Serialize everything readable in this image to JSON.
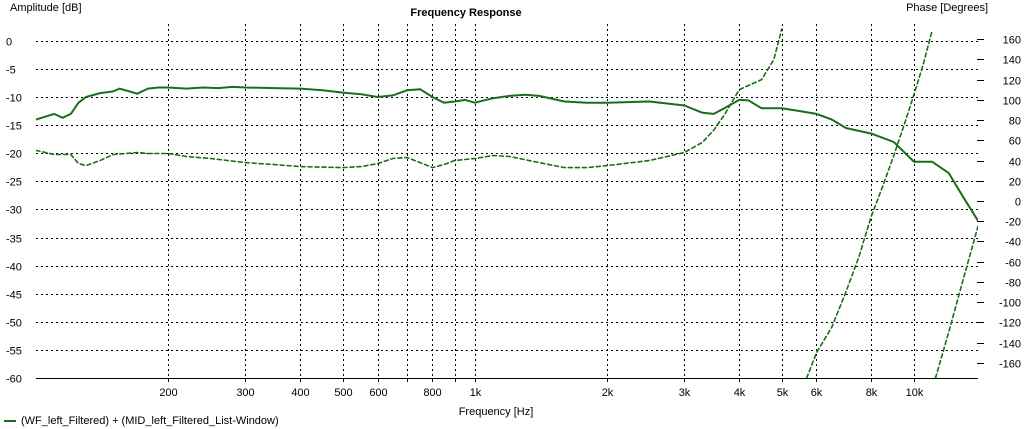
{
  "chart_data": {
    "type": "line",
    "title": "Frequency Response",
    "xlabel": "Frequency [Hz]",
    "ylabel_left": "Amplitude [dB]",
    "ylabel_right": "Phase [Degrees]",
    "x_scale": "log",
    "xlim": [
      100,
      14000
    ],
    "ylim_left": [
      -60,
      3
    ],
    "ylim_right": [
      -175,
      175
    ],
    "grid": true,
    "x_ticks": [
      {
        "value": 200,
        "label": "200"
      },
      {
        "value": 300,
        "label": "300"
      },
      {
        "value": 400,
        "label": "400"
      },
      {
        "value": 500,
        "label": "500"
      },
      {
        "value": 600,
        "label": "600"
      },
      {
        "value": 800,
        "label": "800"
      },
      {
        "value": 1000,
        "label": "1k"
      },
      {
        "value": 2000,
        "label": "2k"
      },
      {
        "value": 3000,
        "label": "3k"
      },
      {
        "value": 4000,
        "label": "4k"
      },
      {
        "value": 5000,
        "label": "5k"
      },
      {
        "value": 6000,
        "label": "6k"
      },
      {
        "value": 8000,
        "label": "8k"
      },
      {
        "value": 10000,
        "label": "10k"
      }
    ],
    "x_minor_grid": [
      700,
      900
    ],
    "y_left_ticks": [
      0,
      -5,
      -10,
      -15,
      -20,
      -25,
      -30,
      -35,
      -40,
      -45,
      -50,
      -55,
      -60
    ],
    "y_right_ticks": [
      160,
      140,
      120,
      100,
      80,
      60,
      40,
      20,
      0,
      -20,
      -40,
      -60,
      -80,
      -100,
      -120,
      -140,
      -160
    ],
    "legend_text": "(WF_left_Filtered) + (MID_left_Filtered_List-Window)",
    "series": [
      {
        "axis": "left",
        "style": "solid",
        "color": "#1a6e1a",
        "points": [
          [
            100,
            -14
          ],
          [
            105,
            -13.5
          ],
          [
            110,
            -13
          ],
          [
            115,
            -13.7
          ],
          [
            120,
            -13
          ],
          [
            125,
            -11
          ],
          [
            130,
            -10
          ],
          [
            140,
            -9.3
          ],
          [
            150,
            -9
          ],
          [
            155,
            -8.5
          ],
          [
            160,
            -8.8
          ],
          [
            170,
            -9.4
          ],
          [
            180,
            -8.5
          ],
          [
            190,
            -8.3
          ],
          [
            200,
            -8.3
          ],
          [
            220,
            -8.5
          ],
          [
            240,
            -8.3
          ],
          [
            260,
            -8.4
          ],
          [
            280,
            -8.2
          ],
          [
            300,
            -8.3
          ],
          [
            350,
            -8.4
          ],
          [
            400,
            -8.5
          ],
          [
            450,
            -8.8
          ],
          [
            500,
            -9.2
          ],
          [
            550,
            -9.5
          ],
          [
            600,
            -10
          ],
          [
            650,
            -9.7
          ],
          [
            700,
            -8.8
          ],
          [
            750,
            -8.6
          ],
          [
            800,
            -10
          ],
          [
            850,
            -11
          ],
          [
            900,
            -10.8
          ],
          [
            950,
            -10.5
          ],
          [
            1000,
            -11
          ],
          [
            1100,
            -10.2
          ],
          [
            1200,
            -9.8
          ],
          [
            1300,
            -9.6
          ],
          [
            1400,
            -9.8
          ],
          [
            1600,
            -10.8
          ],
          [
            1800,
            -11
          ],
          [
            2000,
            -11
          ],
          [
            2500,
            -10.8
          ],
          [
            3000,
            -11.5
          ],
          [
            3300,
            -12.8
          ],
          [
            3500,
            -13
          ],
          [
            3700,
            -12
          ],
          [
            4000,
            -10.5
          ],
          [
            4200,
            -10.6
          ],
          [
            4500,
            -12
          ],
          [
            5000,
            -12
          ],
          [
            5500,
            -12.5
          ],
          [
            6000,
            -13
          ],
          [
            6500,
            -14
          ],
          [
            7000,
            -15.5
          ],
          [
            8000,
            -16.5
          ],
          [
            9000,
            -18
          ],
          [
            10000,
            -21.5
          ],
          [
            11000,
            -21.5
          ],
          [
            12000,
            -23.5
          ],
          [
            13000,
            -28
          ],
          [
            14000,
            -32
          ]
        ]
      },
      {
        "axis": "right",
        "style": "dashed",
        "color": "#1a6e1a",
        "points": [
          [
            100,
            50
          ],
          [
            110,
            46
          ],
          [
            120,
            46
          ],
          [
            125,
            37
          ],
          [
            130,
            35
          ],
          [
            140,
            40
          ],
          [
            150,
            46
          ],
          [
            160,
            47
          ],
          [
            170,
            48
          ],
          [
            180,
            47
          ],
          [
            200,
            47
          ],
          [
            220,
            44
          ],
          [
            250,
            42
          ],
          [
            300,
            38
          ],
          [
            350,
            36
          ],
          [
            400,
            34
          ],
          [
            500,
            33
          ],
          [
            550,
            34
          ],
          [
            600,
            37
          ],
          [
            650,
            42
          ],
          [
            700,
            43
          ],
          [
            750,
            38
          ],
          [
            800,
            33
          ],
          [
            850,
            36
          ],
          [
            900,
            40
          ],
          [
            1000,
            42
          ],
          [
            1100,
            45
          ],
          [
            1200,
            44
          ],
          [
            1400,
            38
          ],
          [
            1600,
            33
          ],
          [
            1800,
            33
          ],
          [
            2000,
            35
          ],
          [
            2500,
            40
          ],
          [
            3000,
            48
          ],
          [
            3300,
            58
          ],
          [
            3500,
            70
          ],
          [
            3700,
            85
          ],
          [
            4000,
            110
          ],
          [
            4500,
            120
          ],
          [
            4800,
            140
          ],
          [
            5000,
            170
          ]
        ]
      },
      {
        "axis": "right",
        "style": "dashed",
        "color": "#1a6e1a",
        "points": [
          [
            5700,
            -175
          ],
          [
            6000,
            -150
          ],
          [
            6500,
            -125
          ],
          [
            7000,
            -90
          ],
          [
            7500,
            -55
          ],
          [
            8000,
            -15
          ],
          [
            8500,
            15
          ],
          [
            9000,
            45
          ],
          [
            9500,
            75
          ],
          [
            10000,
            105
          ],
          [
            10500,
            135
          ],
          [
            11000,
            168
          ]
        ]
      },
      {
        "axis": "right",
        "style": "dashed",
        "color": "#1a6e1a",
        "points": [
          [
            11200,
            -175
          ],
          [
            12000,
            -130
          ],
          [
            13000,
            -75
          ],
          [
            14000,
            -25
          ]
        ]
      }
    ]
  }
}
